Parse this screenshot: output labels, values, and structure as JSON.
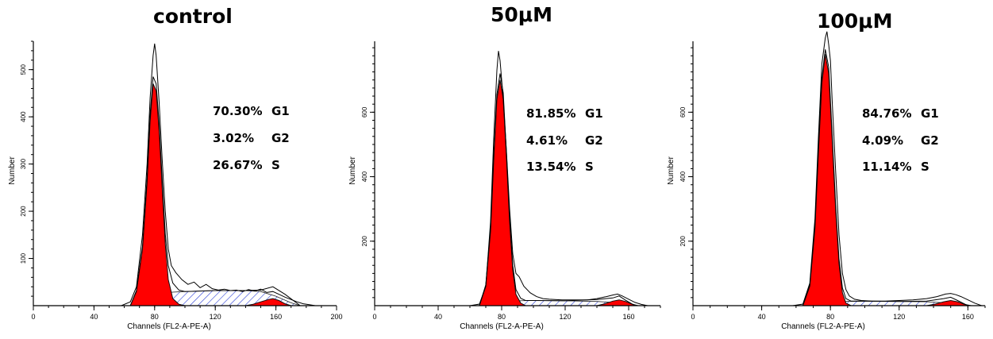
{
  "chart_data": [
    {
      "type": "area",
      "title": "control",
      "xlabel": "Channels (FL2-A-PE-A)",
      "ylabel": "Number",
      "xlim": [
        0,
        200
      ],
      "ylim": [
        0,
        560
      ],
      "x_ticks": [
        "0",
        "40",
        "80",
        "120",
        "160",
        "200"
      ],
      "y_ticks": [
        "100",
        "200",
        "300",
        "400",
        "500"
      ],
      "stats": [
        {
          "pct": "70.30%",
          "phase": "G1"
        },
        {
          "pct": "3.02%",
          "phase": "G2"
        },
        {
          "pct": "26.67%",
          "phase": "S"
        }
      ],
      "series": [
        {
          "name": "G1",
          "x": [
            64,
            68,
            72,
            75,
            77,
            79,
            81,
            83,
            85,
            87,
            89,
            92,
            96,
            100
          ],
          "values": [
            0,
            30,
            120,
            260,
            390,
            470,
            455,
            370,
            250,
            130,
            55,
            15,
            3,
            0
          ]
        },
        {
          "name": "G2",
          "x": [
            140,
            145,
            150,
            155,
            158,
            162,
            166,
            170
          ],
          "values": [
            0,
            3,
            8,
            13,
            15,
            11,
            4,
            0
          ]
        },
        {
          "name": "S",
          "x": [
            72,
            80,
            88,
            100,
            120,
            140,
            150,
            160,
            170,
            176
          ],
          "values": [
            0,
            20,
            28,
            30,
            32,
            32,
            30,
            20,
            6,
            0
          ]
        }
      ],
      "raw_x": [
        58,
        64,
        68,
        72,
        75,
        77,
        79,
        80,
        81,
        83,
        85,
        87,
        89,
        91,
        94,
        98,
        102,
        106,
        110,
        114,
        118,
        122,
        126,
        130,
        134,
        138,
        142,
        146,
        150,
        154,
        158,
        162,
        166,
        170,
        174,
        178,
        182,
        186
      ],
      "raw_values": [
        0,
        8,
        40,
        150,
        300,
        440,
        530,
        555,
        530,
        430,
        310,
        200,
        120,
        85,
        70,
        55,
        45,
        50,
        38,
        45,
        36,
        33,
        35,
        32,
        33,
        30,
        34,
        31,
        35,
        28,
        30,
        24,
        18,
        13,
        8,
        4,
        2,
        0
      ],
      "model_x": [
        64,
        68,
        72,
        75,
        77,
        79,
        81,
        83,
        85,
        87,
        89,
        92,
        96,
        100,
        110,
        120,
        140,
        150,
        158,
        166,
        176
      ],
      "model_values": [
        0,
        32,
        125,
        270,
        405,
        485,
        470,
        385,
        268,
        152,
        85,
        48,
        33,
        30,
        31,
        32,
        32,
        33,
        40,
        24,
        0
      ]
    },
    {
      "type": "area",
      "title": "50μM",
      "xlabel": "Channels (FL2-A-PE-A)",
      "ylabel": "Number",
      "xlim": [
        0,
        180
      ],
      "ylim": [
        0,
        820
      ],
      "x_ticks": [
        "0",
        "40",
        "80",
        "120",
        "160"
      ],
      "y_ticks": [
        "200",
        "400",
        "600"
      ],
      "stats": [
        {
          "pct": "81.85%",
          "phase": "G1"
        },
        {
          "pct": "4.61%",
          "phase": "G2"
        },
        {
          "pct": "13.54%",
          "phase": "S"
        }
      ],
      "series": [
        {
          "name": "G1",
          "x": [
            66,
            70,
            73,
            75,
            77,
            79,
            81,
            83,
            85,
            87,
            89,
            92,
            95
          ],
          "values": [
            0,
            60,
            230,
            450,
            640,
            700,
            640,
            460,
            260,
            110,
            35,
            8,
            0
          ]
        },
        {
          "name": "G2",
          "x": [
            140,
            145,
            150,
            154,
            158,
            162,
            166
          ],
          "values": [
            0,
            6,
            14,
            18,
            13,
            5,
            0
          ]
        },
        {
          "name": "S",
          "x": [
            74,
            80,
            90,
            100,
            120,
            140,
            150,
            158,
            164
          ],
          "values": [
            0,
            10,
            15,
            16,
            15,
            13,
            10,
            4,
            0
          ]
        }
      ],
      "raw_x": [
        60,
        66,
        70,
        73,
        75,
        77,
        78,
        79,
        80,
        81,
        83,
        85,
        87,
        89,
        91,
        94,
        98,
        102,
        106,
        110,
        118,
        126,
        134,
        140,
        146,
        150,
        153,
        156,
        160,
        164,
        168,
        172
      ],
      "raw_values": [
        0,
        5,
        60,
        260,
        520,
        730,
        790,
        760,
        700,
        640,
        480,
        300,
        160,
        100,
        90,
        60,
        40,
        28,
        22,
        20,
        18,
        18,
        18,
        22,
        28,
        33,
        36,
        30,
        20,
        10,
        4,
        0
      ],
      "model_x": [
        66,
        70,
        73,
        75,
        77,
        79,
        81,
        83,
        85,
        87,
        89,
        92,
        95,
        100,
        120,
        140,
        150,
        154,
        158,
        164
      ],
      "model_values": [
        0,
        65,
        240,
        465,
        655,
        720,
        660,
        475,
        275,
        125,
        50,
        23,
        16,
        16,
        15,
        19,
        24,
        30,
        17,
        0
      ]
    },
    {
      "type": "area",
      "title": "100μM",
      "xlabel": "Channels (FL2-A-PE-A)",
      "ylabel": "Number",
      "xlim": [
        0,
        170
      ],
      "ylim": [
        0,
        820
      ],
      "x_ticks": [
        "0",
        "40",
        "80",
        "120",
        "160"
      ],
      "y_ticks": [
        "200",
        "400",
        "600"
      ],
      "stats": [
        {
          "pct": "84.76%",
          "phase": "G1"
        },
        {
          "pct": "4.09%",
          "phase": "G2"
        },
        {
          "pct": "11.14%",
          "phase": "S"
        }
      ],
      "series": [
        {
          "name": "G1",
          "x": [
            64,
            68,
            71,
            73,
            75,
            77,
            79,
            81,
            83,
            85,
            87,
            89,
            92
          ],
          "values": [
            0,
            60,
            240,
            470,
            690,
            780,
            720,
            520,
            300,
            130,
            40,
            8,
            0
          ]
        },
        {
          "name": "G2",
          "x": [
            136,
            141,
            146,
            150,
            154,
            158,
            162
          ],
          "values": [
            0,
            5,
            12,
            16,
            12,
            4,
            0
          ]
        },
        {
          "name": "S",
          "x": [
            72,
            78,
            88,
            100,
            120,
            136,
            146,
            154,
            160
          ],
          "values": [
            0,
            9,
            13,
            14,
            13,
            12,
            9,
            4,
            0
          ]
        }
      ],
      "raw_x": [
        58,
        64,
        68,
        71,
        73,
        75,
        77,
        78,
        79,
        80,
        81,
        83,
        85,
        87,
        89,
        91,
        94,
        98,
        104,
        112,
        120,
        128,
        136,
        142,
        147,
        150,
        153,
        156,
        160,
        164,
        168
      ],
      "raw_values": [
        0,
        5,
        70,
        270,
        520,
        750,
        830,
        850,
        810,
        760,
        640,
        420,
        220,
        100,
        50,
        30,
        20,
        16,
        14,
        14,
        16,
        18,
        22,
        28,
        36,
        38,
        34,
        28,
        18,
        8,
        0
      ],
      "model_x": [
        64,
        68,
        71,
        73,
        75,
        77,
        79,
        81,
        83,
        85,
        87,
        89,
        92,
        100,
        120,
        136,
        146,
        150,
        154,
        160
      ],
      "model_values": [
        0,
        64,
        250,
        485,
        705,
        795,
        740,
        535,
        315,
        145,
        55,
        22,
        14,
        14,
        13,
        14,
        22,
        26,
        16,
        0
      ]
    }
  ]
}
